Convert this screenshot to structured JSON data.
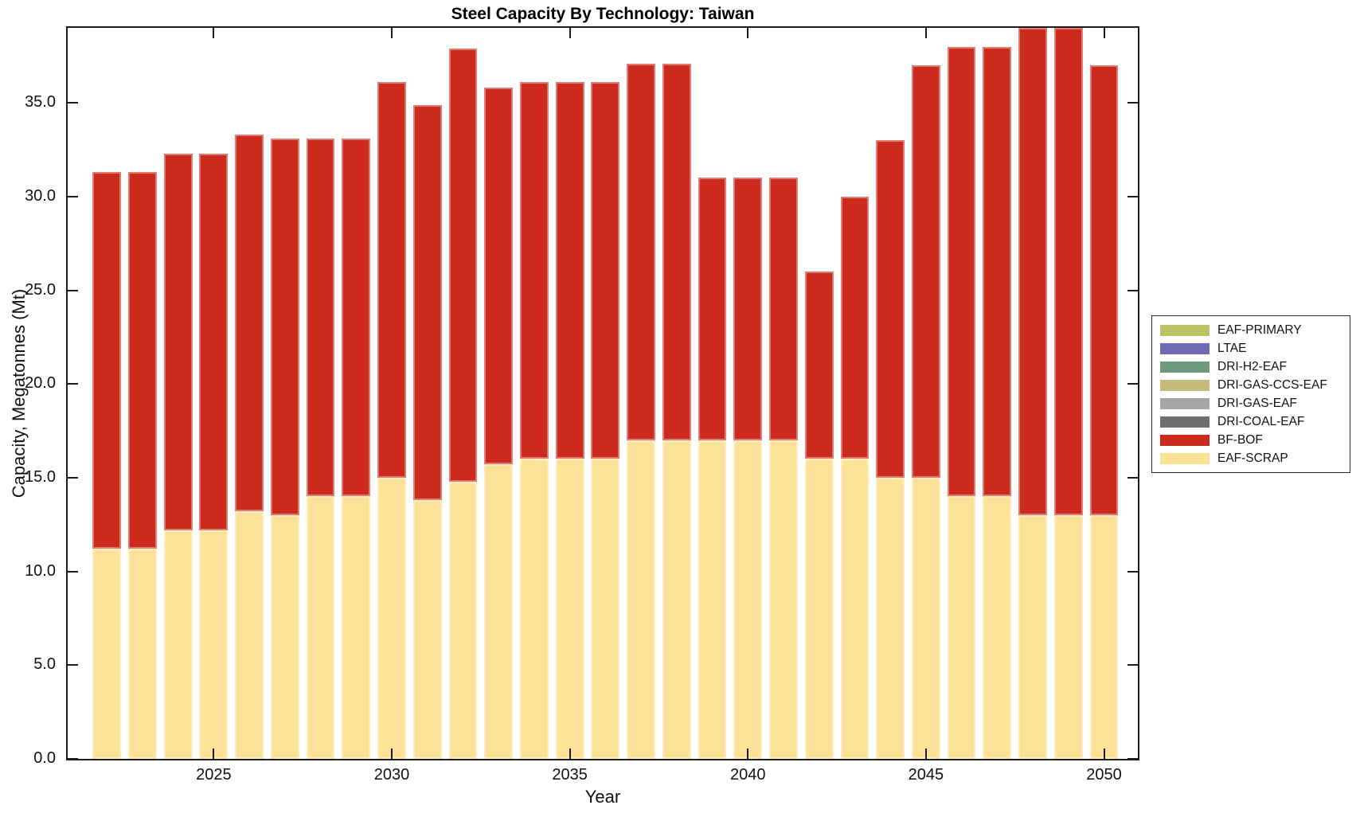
{
  "page": {
    "background": "#ffffff"
  },
  "chart_data": {
    "type": "bar",
    "stacked": true,
    "title": "Steel Capacity By Technology: Taiwan",
    "xlabel": "Year",
    "ylabel": "Capacity, Megatonnes (Mt)",
    "grid": false,
    "legend_position": "right-outside",
    "xlim": [
      2020.9,
      2050.95
    ],
    "ylim": [
      0,
      39.0
    ],
    "bar_width_years": 0.8,
    "xticks": [
      2025,
      2030,
      2035,
      2040,
      2045,
      2050
    ],
    "xtick_labels": [
      "2025",
      "2030",
      "2035",
      "2040",
      "2045",
      "2050"
    ],
    "yticks": [
      0,
      5,
      10,
      15,
      20,
      25,
      30,
      35
    ],
    "ytick_labels": [
      "0.0",
      "5.0",
      "10.0",
      "15.0",
      "20.0",
      "25.0",
      "30.0",
      "35.0"
    ],
    "years": [
      2022,
      2023,
      2024,
      2025,
      2026,
      2027,
      2028,
      2029,
      2030,
      2031,
      2032,
      2033,
      2034,
      2035,
      2036,
      2037,
      2038,
      2039,
      2040,
      2041,
      2042,
      2043,
      2044,
      2045,
      2046,
      2047,
      2048,
      2049,
      2050
    ],
    "series": [
      {
        "name": "EAF-SCRAP",
        "color": "#fce296",
        "values": [
          11.2,
          11.2,
          12.2,
          12.2,
          13.2,
          13.0,
          14.0,
          14.0,
          15.0,
          13.8,
          14.8,
          15.7,
          16.0,
          16.0,
          16.0,
          17.0,
          17.0,
          17.0,
          17.0,
          17.0,
          16.0,
          16.0,
          15.0,
          15.0,
          14.0,
          14.0,
          13.0,
          13.0,
          13.0
        ]
      },
      {
        "name": "BF-BOF",
        "color": "#cd2a1e",
        "values": [
          20.1,
          20.1,
          20.1,
          20.1,
          20.1,
          20.1,
          19.1,
          19.1,
          21.1,
          21.1,
          23.1,
          20.1,
          20.1,
          20.1,
          20.1,
          20.1,
          20.1,
          14.0,
          14.0,
          14.0,
          10.0,
          14.0,
          18.0,
          22.0,
          24.0,
          24.0,
          26.0,
          26.0,
          24.0
        ]
      },
      {
        "name": "DRI-COAL-EAF",
        "color": "#6f6f6f",
        "values": [
          0,
          0,
          0,
          0,
          0,
          0,
          0,
          0,
          0,
          0,
          0,
          0,
          0,
          0,
          0,
          0,
          0,
          0,
          0,
          0,
          0,
          0,
          0,
          0,
          0,
          0,
          0,
          0,
          0
        ]
      },
      {
        "name": "DRI-GAS-EAF",
        "color": "#a6a6a6",
        "values": [
          0,
          0,
          0,
          0,
          0,
          0,
          0,
          0,
          0,
          0,
          0,
          0,
          0,
          0,
          0,
          0,
          0,
          0,
          0,
          0,
          0,
          0,
          0,
          0,
          0,
          0,
          0,
          0,
          0
        ]
      },
      {
        "name": "DRI-GAS-CCS-EAF",
        "color": "#c4ba7b",
        "values": [
          0,
          0,
          0,
          0,
          0,
          0,
          0,
          0,
          0,
          0,
          0,
          0,
          0,
          0,
          0,
          0,
          0,
          0,
          0,
          0,
          0,
          0,
          0,
          0,
          0,
          0,
          0,
          0,
          0
        ]
      },
      {
        "name": "DRI-H2-EAF",
        "color": "#6f997e",
        "values": [
          0,
          0,
          0,
          0,
          0,
          0,
          0,
          0,
          0,
          0,
          0,
          0,
          0,
          0,
          0,
          0,
          0,
          0,
          0,
          0,
          0,
          0,
          0,
          0,
          0,
          0,
          0,
          0,
          0
        ]
      },
      {
        "name": "LTAE",
        "color": "#7169b6",
        "values": [
          0,
          0,
          0,
          0,
          0,
          0,
          0,
          0,
          0,
          0,
          0,
          0,
          0,
          0,
          0,
          0,
          0,
          0,
          0,
          0,
          0,
          0,
          0,
          0,
          0,
          0,
          0,
          0,
          0
        ]
      },
      {
        "name": "EAF-PRIMARY",
        "color": "#b8c364",
        "values": [
          0,
          0,
          0,
          0,
          0,
          0,
          0,
          0,
          0,
          0,
          0,
          0,
          0,
          0,
          0,
          0,
          0,
          0,
          0,
          0,
          0,
          0,
          0,
          0,
          0,
          0,
          0,
          0,
          0
        ]
      }
    ],
    "legend_top_to_bottom": [
      "EAF-PRIMARY",
      "LTAE",
      "DRI-H2-EAF",
      "DRI-GAS-CCS-EAF",
      "DRI-GAS-EAF",
      "DRI-COAL-EAF",
      "BF-BOF",
      "EAF-SCRAP"
    ]
  }
}
